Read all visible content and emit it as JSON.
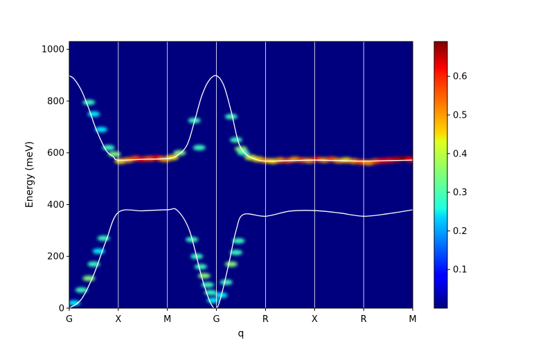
{
  "chart_data": {
    "type": "heatmap",
    "title": "",
    "xlabel": "q",
    "ylabel": "Energy (meV)",
    "x_ticks": [
      "G",
      "X",
      "M",
      "G",
      "R",
      "X",
      "R",
      "M"
    ],
    "ylim": [
      0,
      1030
    ],
    "y_ticks": [
      0,
      200,
      400,
      600,
      800,
      1000
    ],
    "colorbar": {
      "colormap": "jet",
      "range": [
        0.0,
        0.69
      ],
      "ticks": [
        0.1,
        0.2,
        0.3,
        0.4,
        0.5,
        0.6
      ]
    },
    "grid": "vertical lines at symmetry points",
    "series": [
      {
        "kind": "line",
        "color": "#ffffff",
        "points": [
          [
            0,
            0
          ],
          [
            0.25,
            35
          ],
          [
            0.5,
            130
          ],
          [
            0.75,
            260
          ],
          [
            1,
            370
          ],
          [
            1.5,
            376
          ],
          [
            2,
            380
          ],
          [
            2.2,
            378
          ],
          [
            2.45,
            300
          ],
          [
            2.7,
            120
          ],
          [
            2.88,
            20
          ],
          [
            3,
            0
          ],
          [
            3.1,
            50
          ],
          [
            3.25,
            170
          ],
          [
            3.4,
            300
          ],
          [
            3.55,
            362
          ],
          [
            4,
            355
          ],
          [
            4.5,
            375
          ],
          [
            5,
            377
          ],
          [
            5.5,
            368
          ],
          [
            6,
            355
          ],
          [
            6.5,
            365
          ],
          [
            7,
            380
          ]
        ]
      },
      {
        "kind": "line",
        "color": "#ffffff",
        "points": [
          [
            0,
            898
          ],
          [
            0.1,
            885
          ],
          [
            0.25,
            840
          ],
          [
            0.4,
            770
          ],
          [
            0.55,
            690
          ],
          [
            0.75,
            610
          ],
          [
            0.9,
            585
          ],
          [
            1,
            572
          ],
          [
            1.5,
            575
          ],
          [
            2,
            578
          ],
          [
            2.2,
            590
          ],
          [
            2.4,
            630
          ],
          [
            2.55,
            720
          ],
          [
            2.7,
            820
          ],
          [
            2.85,
            880
          ],
          [
            3,
            898
          ],
          [
            3.15,
            860
          ],
          [
            3.3,
            760
          ],
          [
            3.45,
            640
          ],
          [
            3.6,
            595
          ],
          [
            3.8,
            575
          ],
          [
            4,
            568
          ],
          [
            4.5,
            570
          ],
          [
            5,
            572
          ],
          [
            5.5,
            570
          ],
          [
            6,
            568
          ],
          [
            6.5,
            570
          ],
          [
            7,
            572
          ]
        ]
      },
      {
        "kind": "intensity",
        "points": [
          [
            1.05,
            568,
            0.45
          ],
          [
            1.2,
            572,
            0.5
          ],
          [
            1.35,
            578,
            0.55
          ],
          [
            1.5,
            576,
            0.6
          ],
          [
            1.65,
            578,
            0.55
          ],
          [
            1.8,
            580,
            0.6
          ],
          [
            1.95,
            575,
            0.5
          ],
          [
            2.1,
            582,
            0.45
          ],
          [
            2.25,
            600,
            0.35
          ],
          [
            3.55,
            600,
            0.3
          ],
          [
            3.7,
            582,
            0.4
          ],
          [
            3.85,
            575,
            0.45
          ],
          [
            4.0,
            570,
            0.5
          ],
          [
            4.15,
            568,
            0.45
          ],
          [
            4.3,
            572,
            0.5
          ],
          [
            4.45,
            570,
            0.55
          ],
          [
            4.6,
            575,
            0.5
          ],
          [
            4.75,
            572,
            0.55
          ],
          [
            4.9,
            570,
            0.5
          ],
          [
            5.05,
            575,
            0.6
          ],
          [
            5.2,
            572,
            0.5
          ],
          [
            5.35,
            575,
            0.55
          ],
          [
            5.5,
            570,
            0.5
          ],
          [
            5.65,
            572,
            0.45
          ],
          [
            5.8,
            568,
            0.5
          ],
          [
            5.95,
            565,
            0.55
          ],
          [
            6.1,
            562,
            0.5
          ],
          [
            6.25,
            568,
            0.55
          ],
          [
            6.4,
            570,
            0.6
          ],
          [
            6.55,
            572,
            0.6
          ],
          [
            6.7,
            575,
            0.65
          ],
          [
            6.85,
            578,
            0.69
          ],
          [
            6.97,
            574,
            0.6
          ],
          [
            0.4,
            795,
            0.3
          ],
          [
            0.5,
            750,
            0.25
          ],
          [
            0.65,
            690,
            0.25
          ],
          [
            0.8,
            620,
            0.3
          ],
          [
            0.92,
            595,
            0.35
          ],
          [
            2.55,
            725,
            0.3
          ],
          [
            2.65,
            620,
            0.3
          ],
          [
            3.3,
            740,
            0.3
          ],
          [
            3.4,
            650,
            0.3
          ],
          [
            3.5,
            615,
            0.35
          ],
          [
            0.1,
            20,
            0.25
          ],
          [
            0.25,
            70,
            0.3
          ],
          [
            0.4,
            115,
            0.35
          ],
          [
            0.5,
            170,
            0.3
          ],
          [
            0.6,
            220,
            0.25
          ],
          [
            0.7,
            270,
            0.3
          ],
          [
            2.5,
            265,
            0.3
          ],
          [
            2.6,
            200,
            0.3
          ],
          [
            2.68,
            160,
            0.3
          ],
          [
            2.75,
            125,
            0.35
          ],
          [
            2.82,
            90,
            0.3
          ],
          [
            2.88,
            60,
            0.3
          ],
          [
            2.93,
            30,
            0.25
          ],
          [
            3.1,
            50,
            0.25
          ],
          [
            3.2,
            100,
            0.3
          ],
          [
            3.3,
            170,
            0.35
          ],
          [
            3.4,
            215,
            0.3
          ],
          [
            3.45,
            260,
            0.3
          ]
        ]
      }
    ]
  }
}
